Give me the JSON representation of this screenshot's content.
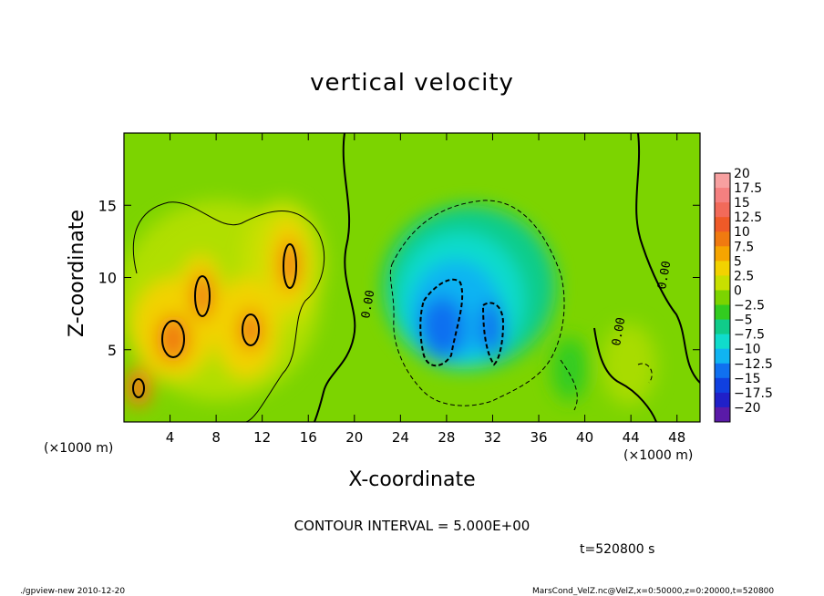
{
  "chart_data": {
    "type": "heatmap",
    "title": "vertical velocity",
    "xlabel": "X-coordinate",
    "ylabel": "Z-coordinate",
    "x_unit": "(×1000 m)",
    "y_unit": "(×1000 m)",
    "xlim": [
      0,
      50
    ],
    "ylim": [
      0,
      20
    ],
    "x_ticks": [
      4,
      8,
      12,
      16,
      20,
      24,
      28,
      32,
      36,
      40,
      44,
      48
    ],
    "y_ticks": [
      5,
      10,
      15
    ],
    "contour_interval_text": "CONTOUR INTERVAL = 5.000E+00",
    "contour_labels": [
      "0.00",
      "0.00",
      "0.00"
    ],
    "time_text": "t=520800 s",
    "colorbar": {
      "levels": [
        "20",
        "17.5",
        "15",
        "12.5",
        "10",
        "7.5",
        "5",
        "2.5",
        "0",
        "−2.5",
        "−5",
        "−7.5",
        "−10",
        "−12.5",
        "−15",
        "−17.5",
        "−20"
      ],
      "colors": [
        "#f7a0a0",
        "#f58080",
        "#f26a5a",
        "#ef5a28",
        "#f07a10",
        "#f6a500",
        "#f2d200",
        "#c8e000",
        "#7cd400",
        "#32cc20",
        "#10cc8a",
        "#10dccc",
        "#10b4f2",
        "#1070f0",
        "#1040e0",
        "#2020c8",
        "#5a1aa8"
      ]
    },
    "features": [
      {
        "sign": "positive",
        "x": 2.5,
        "z": 2.8,
        "peak": 10
      },
      {
        "sign": "positive",
        "x": 5.5,
        "z": 6.0,
        "peak": 12.5
      },
      {
        "sign": "positive",
        "x": 7.5,
        "z": 8.5,
        "peak": 12.5
      },
      {
        "sign": "positive",
        "x": 11.0,
        "z": 6.5,
        "peak": 12.5
      },
      {
        "sign": "positive",
        "x": 14.0,
        "z": 10.5,
        "peak": 12.5
      },
      {
        "sign": "negative",
        "x": 27.5,
        "z": 6.5,
        "peak": -10
      },
      {
        "sign": "negative",
        "x": 32.0,
        "z": 6.0,
        "peak": -10
      }
    ]
  },
  "footer": {
    "left": "./gpview-new  2010-12-20",
    "right": "MarsCond_VelZ.nc@VelZ,x=0:50000,z=0:20000,t=520800"
  }
}
